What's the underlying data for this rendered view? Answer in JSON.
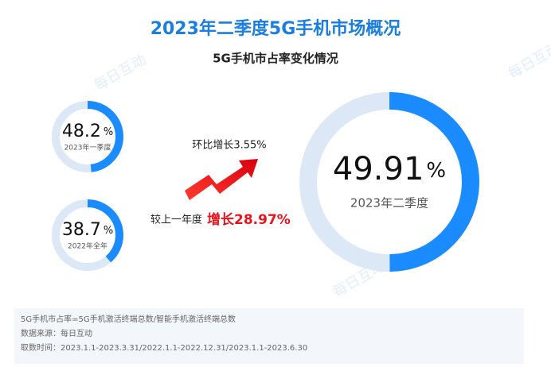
{
  "title": "2023年二季度5G手机市场概况",
  "subtitle": "5G手机市占率变化情况",
  "range": [
    0,
    100
  ],
  "rings": [
    {
      "value": 48.2,
      "unit": "%",
      "label": "2023年一季度"
    },
    {
      "value": 38.7,
      "unit": "%",
      "label": "2022年全年"
    },
    {
      "value": 49.91,
      "unit": "%",
      "label": "2023年二季度"
    }
  ],
  "annotations": {
    "qoq": "环比增长3.55%",
    "yoy_prefix": "较上一年度",
    "yoy": "增长28.97%"
  },
  "notes": [
    "5G手机市占率=5G手机激活终端总数/智能手机激活终端总数",
    "数据来源：每日互动",
    "取数时间：2023.1.1-2023.3.31/2022.1.1-2022.12.31/2023.1.1-2023.6.30"
  ],
  "watermark": "每日互动"
}
